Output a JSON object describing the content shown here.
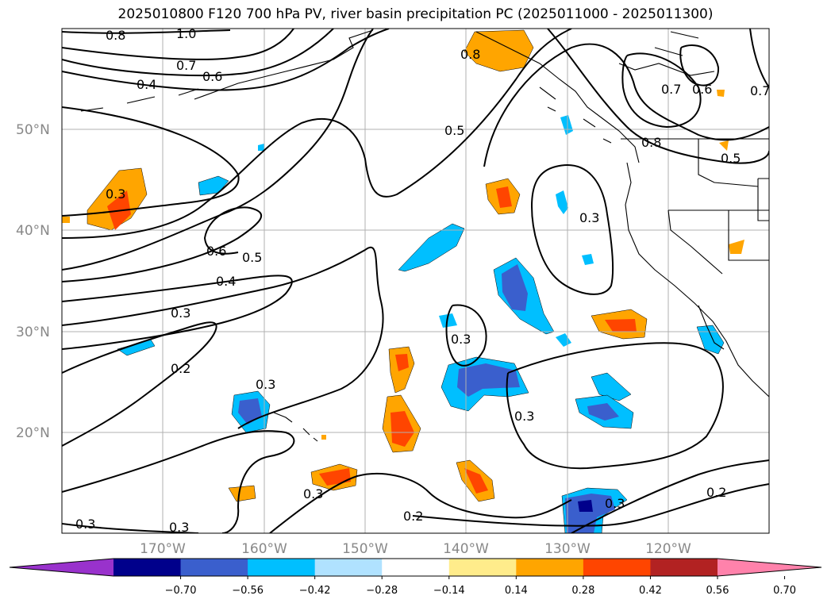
{
  "title": "2025010800 F120 700 hPa PV, river basin precipitation PC (2025011000 - 2025011300)",
  "map": {
    "lat_labels": [
      "50°N",
      "40°N",
      "30°N",
      "20°N"
    ],
    "lon_labels": [
      "170°W",
      "160°W",
      "150°W",
      "140°W",
      "130°W",
      "120°W"
    ],
    "contour_labels": [
      "0.8",
      "1.0",
      "0.7",
      "0.6",
      "0.4",
      "0.5",
      "0.3",
      "0.6",
      "0.5",
      "0.4",
      "0.3",
      "0.2",
      "0.3",
      "0.3",
      "0.3",
      "0.2",
      "0.3",
      "0.3",
      "0.3",
      "0.2",
      "0.3",
      "0.8",
      "0.7",
      "0.6",
      "0.7",
      "0.8",
      "0.5",
      "0.3"
    ],
    "grid": true
  },
  "colorbar": {
    "colors": [
      "#9932CC",
      "#00008B",
      "#3A5FCD",
      "#00BFFF",
      "#B0E2FF",
      "#FFFFFF",
      "#FFEC8B",
      "#FFA500",
      "#FF4500",
      "#B22222",
      "#FF82AB"
    ],
    "ticks": [
      "−0.70",
      "−0.56",
      "−0.42",
      "−0.28",
      "−0.14",
      "0.14",
      "0.28",
      "0.42",
      "0.56",
      "0.70"
    ],
    "extend": "both"
  }
}
